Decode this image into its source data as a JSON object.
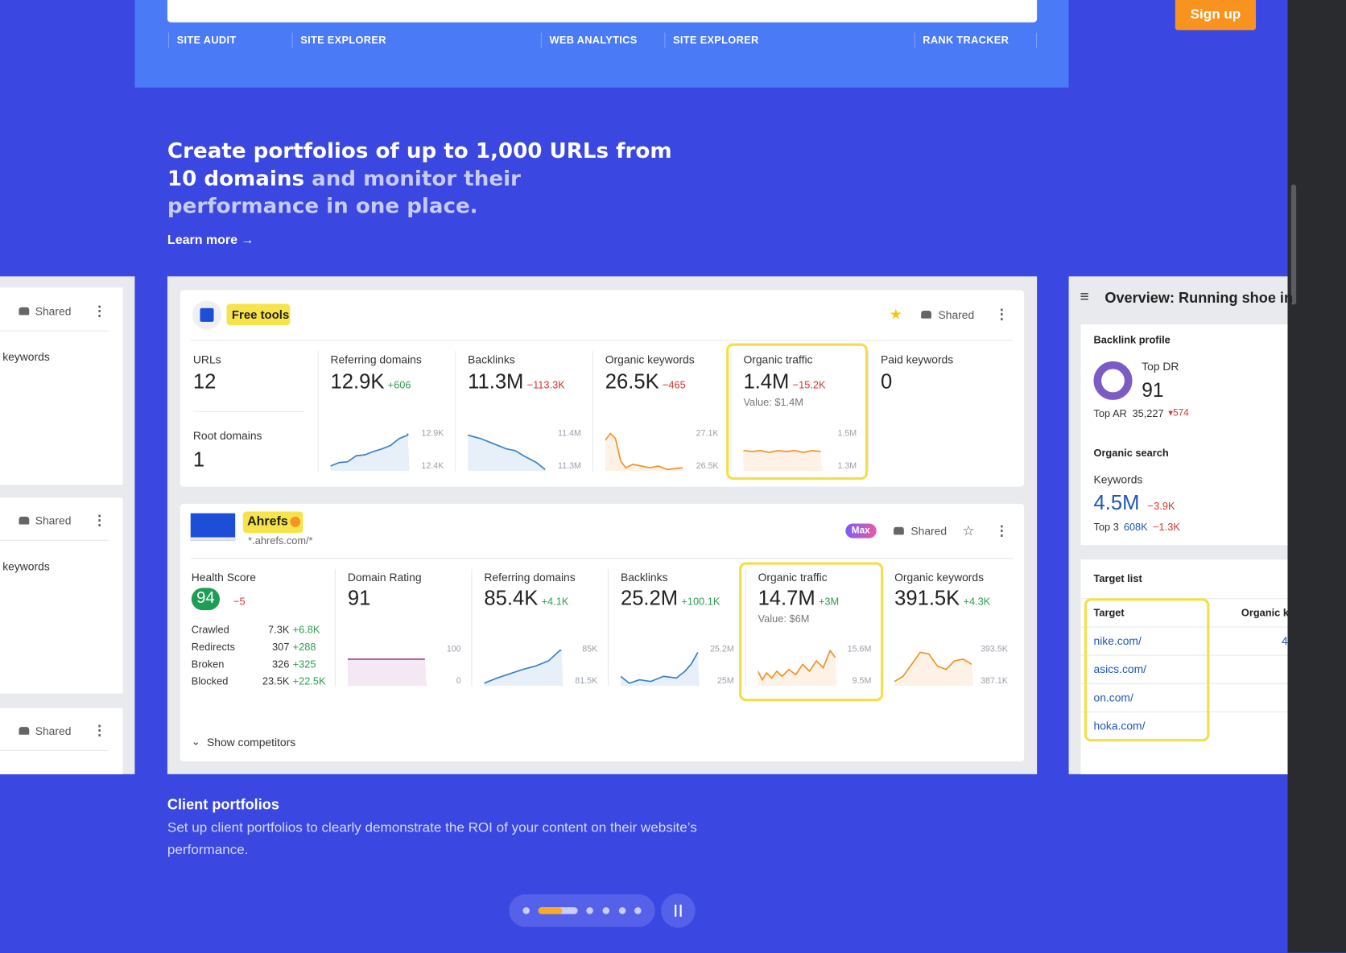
{
  "top_bar": {
    "tabs": [
      "SITE AUDIT",
      "SITE EXPLORER",
      "WEB ANALYTICS",
      "SITE EXPLORER",
      "RANK TRACKER"
    ],
    "signup": "Sign up"
  },
  "hero": {
    "title_strong": "Create portfolios of up to 1,000 URLs from 10 domains",
    "title_rest": "and monitor their performance in one place.",
    "link": "Learn more →"
  },
  "left_cards": [
    {
      "shared": "Shared",
      "label": "keywords"
    },
    {
      "shared": "Shared",
      "label": "keywords"
    },
    {
      "shared": "Shared"
    }
  ],
  "card1": {
    "badge": "Free tools",
    "shared": "Shared",
    "urls": {
      "label": "URLs",
      "value": "12"
    },
    "root": {
      "label": "Root domains",
      "value": "1"
    },
    "metrics": [
      {
        "label": "Referring domains",
        "value": "12.9K",
        "delta": "+606",
        "high": "12.9K",
        "low": "12.4K"
      },
      {
        "label": "Backlinks",
        "value": "11.3M",
        "delta": "−113.3K",
        "high": "11.4M",
        "low": "11.3M"
      },
      {
        "label": "Organic keywords",
        "value": "26.5K",
        "delta": "−465",
        "high": "27.1K",
        "low": "26.5K"
      },
      {
        "label": "Organic traffic",
        "value": "1.4M",
        "delta": "−15.2K",
        "note": "Value: $1.4M",
        "high": "1.5M",
        "low": "1.3M"
      },
      {
        "label": "Paid keywords",
        "value": "0"
      }
    ]
  },
  "card2": {
    "name": "Ahrefs",
    "domain": "*.ahrefs.com/*",
    "plan": "Max",
    "shared": "Shared",
    "health": {
      "label": "Health Score",
      "value": "94",
      "delta": "−5",
      "rows": [
        [
          "Crawled",
          "7.3K",
          "+6.8K"
        ],
        [
          "Redirects",
          "307",
          "+288"
        ],
        [
          "Broken",
          "326",
          "+325"
        ],
        [
          "Blocked",
          "23.5K",
          "+22.5K"
        ]
      ]
    },
    "metrics": [
      {
        "label": "Domain Rating",
        "value": "91",
        "high": "100",
        "low": "0"
      },
      {
        "label": "Referring domains",
        "value": "85.4K",
        "delta": "+4.1K",
        "high": "85K",
        "low": "81.5K"
      },
      {
        "label": "Backlinks",
        "value": "25.2M",
        "delta": "+100.1K",
        "high": "25.2M",
        "low": "25M"
      },
      {
        "label": "Organic traffic",
        "value": "14.7M",
        "delta": "+3M",
        "note": "Value: $6M",
        "high": "15.6M",
        "low": "9.5M"
      },
      {
        "label": "Organic keywords",
        "value": "391.5K",
        "delta": "+4.3K",
        "high": "393.5K",
        "low": "387.1K"
      }
    ],
    "show_competitors": "Show competitors"
  },
  "right_panel": {
    "title": "Overview: Running shoe in",
    "backlink": {
      "title": "Backlink profile",
      "dr_label": "Top DR",
      "dr": "91",
      "ar_label": "Top AR",
      "ar": "35,227",
      "ar_delta": "▾574"
    },
    "organic": {
      "title": "Organic search",
      "kw_label": "Keywords",
      "kw": "4.5M",
      "kw_delta": "−3.9K",
      "top3_label": "Top 3",
      "top3": "608K",
      "top3_delta": "−1.3K"
    },
    "target": {
      "title": "Target list",
      "columns": [
        "Target",
        "Organic k"
      ],
      "rows": [
        "nike.com/",
        "asics.com/",
        "on.com/",
        "hoka.com/"
      ],
      "first_value": "4"
    }
  },
  "caption": {
    "title": "Client portfolios",
    "text": "Set up client portfolios to clearly demonstrate the ROI of your content on their website’s performance."
  }
}
